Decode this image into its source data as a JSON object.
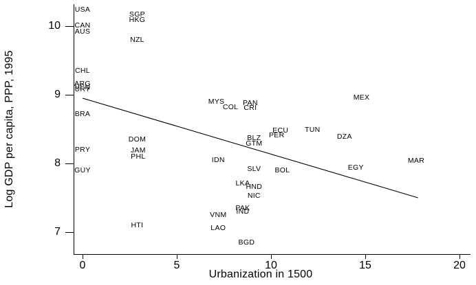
{
  "figure": {
    "background_color": "#ffffff",
    "ink_color": "#000000",
    "description": "Scanned black-and-white scatter plot of log GDP per capita (PPP, 1995) against urbanization in 1500, markers are 3-letter country codes, with a downward-sloping OLS fit line"
  },
  "chart_data": {
    "type": "scatter",
    "title": "",
    "xlabel": "Urbanization in 1500",
    "ylabel": "Log GDP per capita, PPP, 1995",
    "xlim": [
      -0.5,
      20.6
    ],
    "ylim": [
      6.7,
      10.35
    ],
    "x_ticks": [
      0,
      5,
      10,
      15,
      20
    ],
    "y_ticks": [
      10,
      9,
      8,
      7
    ],
    "grid": false,
    "legend_position": "none",
    "marker_style": "country-code-text",
    "points": [
      {
        "code": "USA",
        "x": 0,
        "y": 10.24
      },
      {
        "code": "CAN",
        "x": 0,
        "y": 10.01
      },
      {
        "code": "AUS",
        "x": 0,
        "y": 9.92
      },
      {
        "code": "SGP",
        "x": 2.9,
        "y": 10.17
      },
      {
        "code": "HKG",
        "x": 2.9,
        "y": 10.09
      },
      {
        "code": "NZL",
        "x": 2.9,
        "y": 9.8
      },
      {
        "code": "CHL",
        "x": 0,
        "y": 9.35
      },
      {
        "code": "ARG",
        "x": 0,
        "y": 9.16
      },
      {
        "code": "VEN",
        "x": 0,
        "y": 9.11
      },
      {
        "code": "URY",
        "x": 0,
        "y": 9.08
      },
      {
        "code": "BRA",
        "x": 0,
        "y": 8.72
      },
      {
        "code": "PRY",
        "x": 0,
        "y": 8.2
      },
      {
        "code": "GUY",
        "x": 0,
        "y": 7.9
      },
      {
        "code": "DOM",
        "x": 2.9,
        "y": 8.35
      },
      {
        "code": "JAM",
        "x": 2.95,
        "y": 8.19
      },
      {
        "code": "PHL",
        "x": 2.95,
        "y": 8.1
      },
      {
        "code": "HTI",
        "x": 2.9,
        "y": 7.1
      },
      {
        "code": "MYS",
        "x": 7.1,
        "y": 8.9
      },
      {
        "code": "COL",
        "x": 7.85,
        "y": 8.82
      },
      {
        "code": "PAN",
        "x": 8.9,
        "y": 8.88
      },
      {
        "code": "CRI",
        "x": 8.9,
        "y": 8.81
      },
      {
        "code": "MEX",
        "x": 14.8,
        "y": 8.96
      },
      {
        "code": "ECU",
        "x": 10.5,
        "y": 8.48
      },
      {
        "code": "PER",
        "x": 10.3,
        "y": 8.41
      },
      {
        "code": "TUN",
        "x": 12.2,
        "y": 8.49
      },
      {
        "code": "DZA",
        "x": 13.9,
        "y": 8.39
      },
      {
        "code": "BLZ",
        "x": 9.1,
        "y": 8.37
      },
      {
        "code": "GTM",
        "x": 9.1,
        "y": 8.29
      },
      {
        "code": "IDN",
        "x": 7.2,
        "y": 8.05
      },
      {
        "code": "SLV",
        "x": 9.1,
        "y": 7.92
      },
      {
        "code": "BOL",
        "x": 10.6,
        "y": 7.9
      },
      {
        "code": "EGY",
        "x": 14.5,
        "y": 7.94
      },
      {
        "code": "MAR",
        "x": 17.7,
        "y": 8.04
      },
      {
        "code": "LKA",
        "x": 8.5,
        "y": 7.71
      },
      {
        "code": "HND",
        "x": 9.1,
        "y": 7.66
      },
      {
        "code": "NIC",
        "x": 9.1,
        "y": 7.53
      },
      {
        "code": "PAK",
        "x": 8.5,
        "y": 7.35
      },
      {
        "code": "IND",
        "x": 8.5,
        "y": 7.3
      },
      {
        "code": "VNM",
        "x": 7.2,
        "y": 7.25
      },
      {
        "code": "LAO",
        "x": 7.2,
        "y": 7.06
      },
      {
        "code": "BGD",
        "x": 8.7,
        "y": 6.85
      }
    ],
    "trendline": {
      "x1": 0.0,
      "y1": 8.95,
      "x2": 17.8,
      "y2": 7.5
    }
  }
}
